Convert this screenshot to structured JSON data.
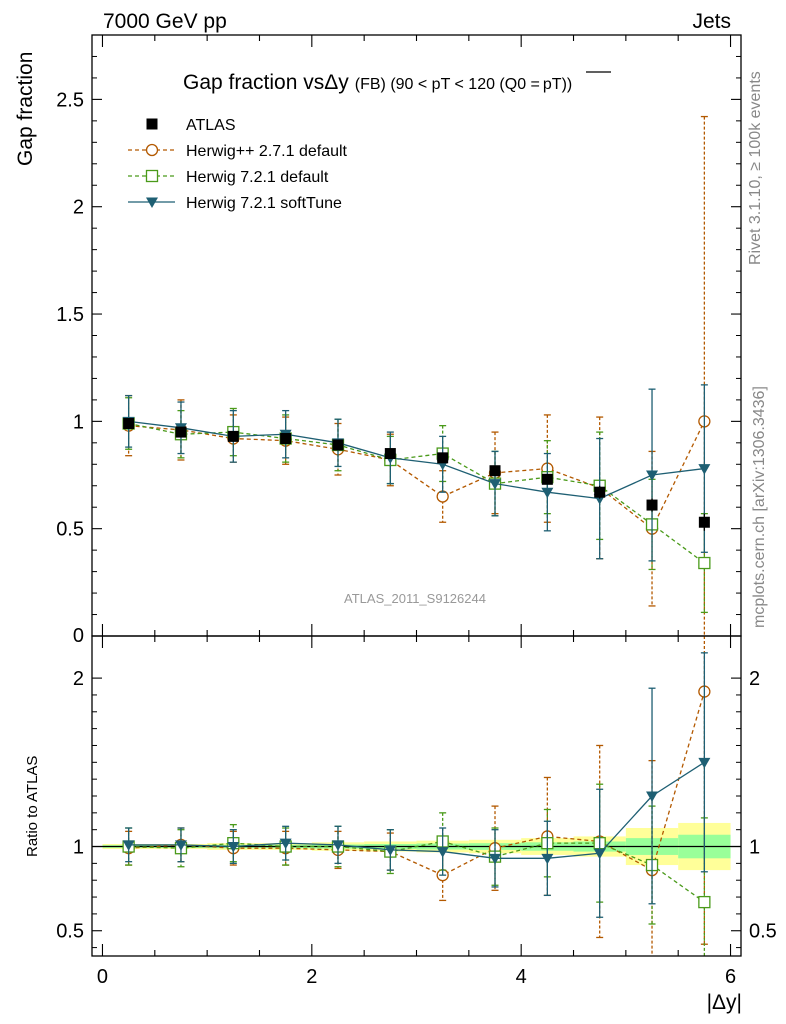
{
  "header": {
    "left": "7000 GeV pp",
    "right": "Jets"
  },
  "side_labels": {
    "rivet": "Rivet 3.1.10, ≥ 100k events",
    "mcplots": "mcplots.cern.ch [arXiv:1306.3436]"
  },
  "colors": {
    "atlas": "#000000",
    "herwigpp": "#b35900",
    "herwig721": "#4a9a1a",
    "softtune": "#1e5f73",
    "band_yellow": "#ffff99",
    "band_green": "#99ff99"
  },
  "chart_data": [
    {
      "type": "scatter",
      "title_main": "Gap fraction vs",
      "title_symbol": "Δy",
      "title_detail": "(FB)  (90 < pT < 120 (Q0 =",
      "title_pt": "pT",
      "title_end": "))",
      "ylabel": "Gap fraction",
      "watermark": "ATLAS_2011_S9126244",
      "xlim": [
        -0.1,
        6.1
      ],
      "ylim": [
        0,
        2.8
      ],
      "yticks": [
        0.5,
        1,
        1.5,
        2,
        2.5
      ],
      "ytick_labels": [
        "0.5",
        "1",
        "1.5",
        "2",
        "2.5"
      ],
      "ylabel_zero": "0",
      "x": [
        0.25,
        0.75,
        1.25,
        1.75,
        2.25,
        2.75,
        3.25,
        3.75,
        4.25,
        4.75,
        5.25,
        5.75
      ],
      "series": [
        {
          "name": "ATLAS",
          "style": "data",
          "values": [
            0.99,
            0.95,
            0.93,
            0.92,
            0.89,
            0.85,
            0.83,
            0.77,
            0.73,
            0.67,
            0.61,
            0.53
          ],
          "errors": [
            0.01,
            0.01,
            0.01,
            0.01,
            0.01,
            0.02,
            0.02,
            0.02,
            0.02,
            0.03,
            0.03,
            0.04
          ]
        },
        {
          "name": "Herwig++ 2.7.1 default",
          "style": "circle",
          "values": [
            0.98,
            0.96,
            0.92,
            0.91,
            0.87,
            0.82,
            0.65,
            0.76,
            0.78,
            0.69,
            0.5,
            1.0
          ],
          "errors": [
            0.14,
            0.14,
            0.11,
            0.11,
            0.12,
            0.12,
            0.12,
            0.19,
            0.25,
            0.33,
            0.36,
            1.42
          ]
        },
        {
          "name": "Herwig 7.2.1 default",
          "style": "square",
          "values": [
            0.99,
            0.94,
            0.95,
            0.92,
            0.89,
            0.82,
            0.85,
            0.71,
            0.74,
            0.7,
            0.52,
            0.34
          ],
          "errors": [
            0.12,
            0.11,
            0.11,
            0.11,
            0.12,
            0.11,
            0.13,
            0.15,
            0.17,
            0.25,
            0.21,
            0.23
          ]
        },
        {
          "name": "Herwig 7.2.1 softTune",
          "style": "triangle",
          "values": [
            1.0,
            0.97,
            0.93,
            0.94,
            0.9,
            0.83,
            0.8,
            0.71,
            0.67,
            0.64,
            0.75,
            0.78
          ],
          "errors": [
            0.12,
            0.12,
            0.12,
            0.11,
            0.11,
            0.12,
            0.13,
            0.15,
            0.18,
            0.28,
            0.4,
            0.39
          ]
        }
      ]
    },
    {
      "type": "scatter",
      "ylabel": "Ratio to ATLAS",
      "xlabel": "|Δy|",
      "xlim": [
        -0.1,
        6.1
      ],
      "ylim": [
        0.35,
        2.25
      ],
      "xticks": [
        0,
        2,
        4,
        6
      ],
      "xtick_labels": [
        "0",
        "2",
        "4",
        "6"
      ],
      "yticks": [
        0.5,
        1,
        2
      ],
      "ytick_labels": [
        "0.5",
        "1",
        "2"
      ],
      "x": [
        0.25,
        0.75,
        1.25,
        1.75,
        2.25,
        2.75,
        3.25,
        3.75,
        4.25,
        4.75,
        5.25,
        5.75
      ],
      "band_yellow": [
        0.015,
        0.015,
        0.02,
        0.02,
        0.025,
        0.03,
        0.035,
        0.04,
        0.05,
        0.06,
        0.11,
        0.14
      ],
      "band_green": [
        0.008,
        0.008,
        0.01,
        0.01,
        0.012,
        0.015,
        0.018,
        0.02,
        0.025,
        0.03,
        0.05,
        0.07
      ],
      "series": [
        {
          "name": "Herwig++ 2.7.1 default",
          "style": "circle",
          "values": [
            0.99,
            1.01,
            0.99,
            0.99,
            0.98,
            0.97,
            0.83,
            0.99,
            1.06,
            1.03,
            0.86,
            1.92
          ],
          "errors": [
            0.1,
            0.1,
            0.1,
            0.1,
            0.11,
            0.11,
            0.15,
            0.25,
            0.35,
            0.57,
            0.65,
            1.5
          ]
        },
        {
          "name": "Herwig 7.2.1 default",
          "style": "square",
          "values": [
            1.0,
            0.99,
            1.02,
            1.0,
            1.0,
            0.97,
            1.03,
            0.94,
            1.02,
            1.02,
            0.89,
            0.67
          ],
          "errors": [
            0.11,
            0.11,
            0.11,
            0.11,
            0.12,
            0.13,
            0.17,
            0.17,
            0.2,
            0.35,
            0.35,
            0.5
          ]
        },
        {
          "name": "Herwig 7.2.1 softTune",
          "style": "triangle",
          "values": [
            1.01,
            1.01,
            1.0,
            1.02,
            1.01,
            0.98,
            0.97,
            0.93,
            0.93,
            0.96,
            1.3,
            1.5
          ],
          "errors": [
            0.1,
            0.1,
            0.1,
            0.1,
            0.11,
            0.12,
            0.14,
            0.17,
            0.22,
            0.38,
            0.64,
            0.65
          ]
        }
      ]
    }
  ]
}
